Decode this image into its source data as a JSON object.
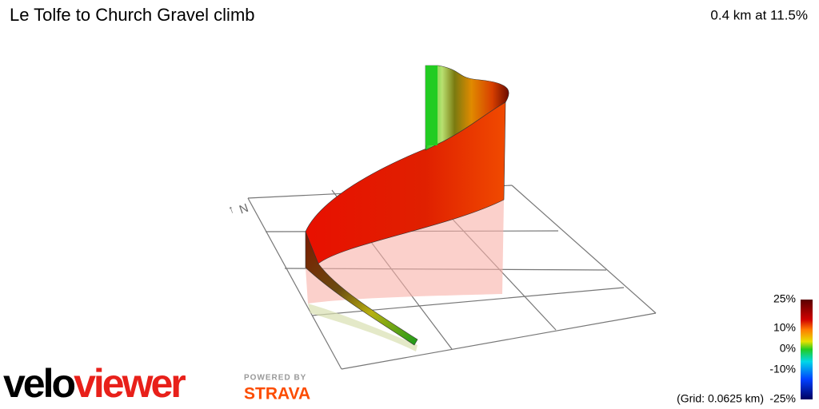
{
  "header": {
    "title": "Le Tolfe to Church Gravel climb",
    "summary": "0.4 km at 11.5%"
  },
  "compass": "N",
  "gradient_scale": {
    "labels": [
      "25%",
      "10%",
      "0%",
      "-10%",
      "-25%"
    ],
    "grid_note": "(Grid: 0.0625 km)"
  },
  "branding": {
    "logo_dark": "velo",
    "logo_red": "viewer",
    "powered_by": "POWERED BY",
    "partner": "STRAVA"
  }
}
